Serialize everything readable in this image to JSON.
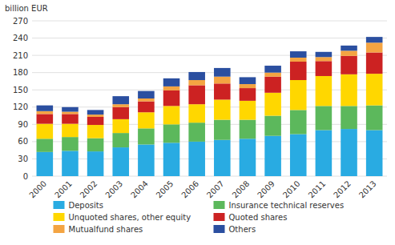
{
  "chart_data": {
    "type": "bar",
    "stacked": true,
    "y_label": "billion EUR",
    "categories": [
      "2000",
      "2001",
      "2002",
      "2003",
      "2004",
      "2005",
      "2006",
      "2007",
      "2008",
      "2009",
      "2010",
      "2011",
      "2012",
      "2013"
    ],
    "series": [
      {
        "name": "Deposits",
        "color": "#29ABE2",
        "values": [
          42,
          44,
          43,
          50,
          55,
          58,
          60,
          63,
          65,
          70,
          73,
          80,
          82,
          80
        ]
      },
      {
        "name": "Insurance technical reserves",
        "color": "#5CB85C",
        "values": [
          23,
          24,
          23,
          25,
          28,
          32,
          33,
          35,
          33,
          35,
          42,
          42,
          40,
          43
        ]
      },
      {
        "name": "Unquoted shares, other equity",
        "color": "#FFD700",
        "values": [
          26,
          23,
          23,
          24,
          28,
          32,
          32,
          35,
          33,
          40,
          52,
          52,
          55,
          55
        ]
      },
      {
        "name": "Quoted shares",
        "color": "#CC2222",
        "values": [
          17,
          17,
          14,
          21,
          19,
          27,
          33,
          28,
          22,
          28,
          32,
          26,
          32,
          37
        ]
      },
      {
        "name": "Mutualfund shares",
        "color": "#F4A442",
        "values": [
          5,
          4,
          4,
          5,
          5,
          7,
          9,
          12,
          7,
          7,
          7,
          7,
          9,
          17
        ]
      },
      {
        "name": "Others",
        "color": "#2B4FA0",
        "values": [
          10,
          8,
          8,
          14,
          13,
          14,
          14,
          15,
          12,
          12,
          11,
          9,
          9,
          10
        ]
      }
    ],
    "ylim": [
      0,
      270
    ],
    "yticks": [
      0,
      30,
      60,
      90,
      120,
      150,
      180,
      210,
      240,
      270
    ],
    "grid": true,
    "legend": "bottom"
  }
}
